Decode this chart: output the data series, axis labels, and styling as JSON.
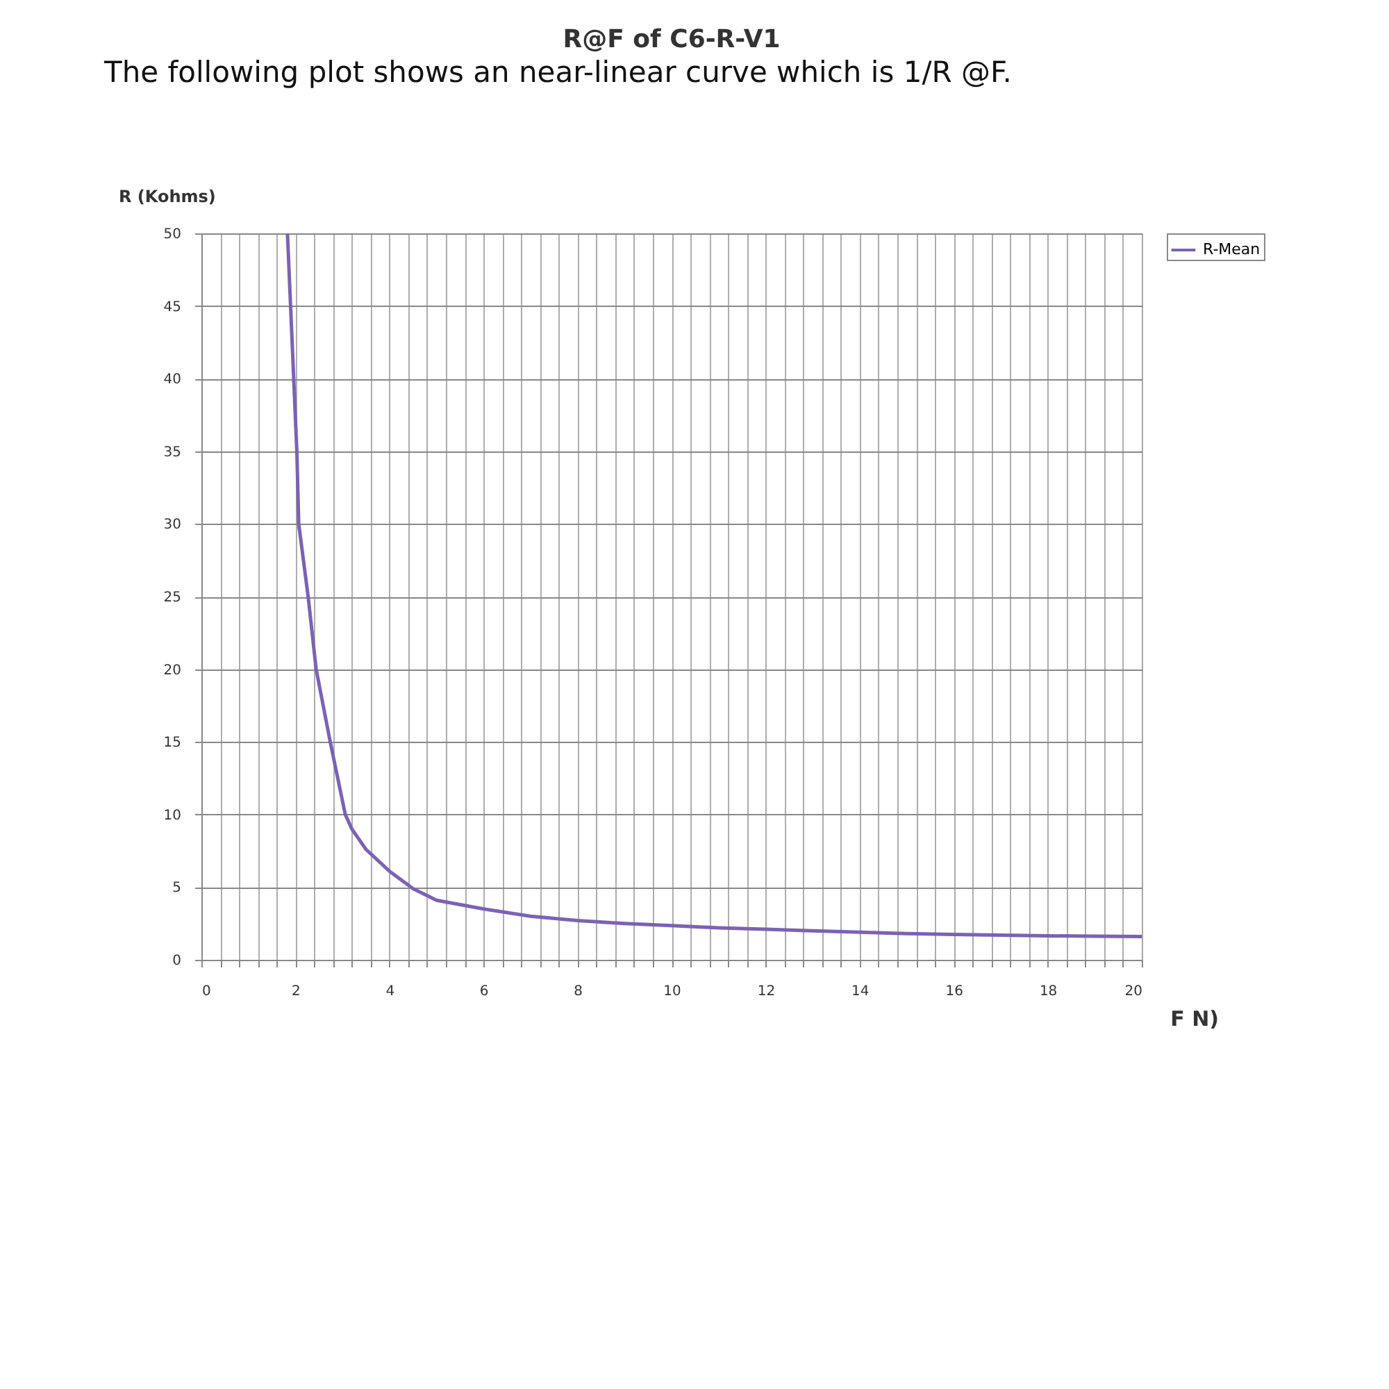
{
  "chart_data": {
    "type": "line",
    "title": "R@F of C6-R-V1",
    "xlabel": "F N)",
    "ylabel": "R (Kohms)",
    "annotations": [
      "The following plot shows an near-linear curve which is 1/R @F."
    ],
    "series": [
      {
        "name": "R-Mean",
        "color": "#7b62b3",
        "x": [
          1.83,
          2.03,
          2.07,
          2.27,
          2.44,
          2.74,
          3.06,
          3.2,
          3.5,
          4,
          4.5,
          5,
          6,
          7,
          8,
          9,
          10,
          11,
          12,
          13,
          14,
          15,
          16,
          17,
          18,
          19,
          20
        ],
        "values": [
          50,
          35,
          30,
          25,
          20,
          15,
          10,
          9,
          7.6,
          6.1,
          4.9,
          4.1,
          3.5,
          3.0,
          2.7,
          2.5,
          2.35,
          2.2,
          2.1,
          2.0,
          1.9,
          1.8,
          1.75,
          1.7,
          1.65,
          1.62,
          1.6
        ]
      }
    ],
    "xlim": [
      0,
      20
    ],
    "ylim": [
      0,
      50
    ],
    "xticks": [
      0,
      {
        "value": 0.4,
        "label": null
      },
      {
        "value": 0.8,
        "label": null
      },
      {
        "value": 1.2,
        "label": null
      },
      {
        "value": 1.6,
        "label": null
      },
      2,
      {
        "value": 2.4,
        "label": null
      },
      {
        "value": 2.8,
        "label": null
      },
      {
        "value": 3.2,
        "label": null
      },
      {
        "value": 3.6,
        "label": null
      },
      4,
      {
        "value": 4.4,
        "label": null
      },
      {
        "value": 4.8,
        "label": null
      },
      {
        "value": 5.2,
        "label": null
      },
      {
        "value": 5.6,
        "label": null
      },
      6,
      {
        "value": 6.4,
        "label": null
      },
      {
        "value": 6.8,
        "label": null
      },
      {
        "value": 7.2,
        "label": null
      },
      {
        "value": 7.6,
        "label": null
      },
      8,
      {
        "value": 8.4,
        "label": null
      },
      {
        "value": 8.8,
        "label": null
      },
      {
        "value": 9.2,
        "label": null
      },
      {
        "value": 9.6,
        "label": null
      },
      10,
      {
        "value": 10.4,
        "label": null
      },
      {
        "value": 10.8,
        "label": null
      },
      {
        "value": 11.2,
        "label": null
      },
      {
        "value": 11.6,
        "label": null
      },
      12,
      {
        "value": 12.4,
        "label": null
      },
      {
        "value": 12.8,
        "label": null
      },
      {
        "value": 13.2,
        "label": null
      },
      {
        "value": 13.6,
        "label": null
      },
      14,
      {
        "value": 14.4,
        "label": null
      },
      {
        "value": 14.8,
        "label": null
      },
      {
        "value": 15.2,
        "label": null
      },
      {
        "value": 15.6,
        "label": null
      },
      16,
      {
        "value": 16.4,
        "label": null
      },
      {
        "value": 16.8,
        "label": null
      },
      {
        "value": 17.2,
        "label": null
      },
      {
        "value": 17.6,
        "label": null
      },
      18,
      {
        "value": 18.4,
        "label": null
      },
      {
        "value": 18.8,
        "label": null
      },
      {
        "value": 19.2,
        "label": null
      },
      {
        "value": 19.6,
        "label": null
      },
      20
    ],
    "yticks": [
      0,
      5,
      10,
      15,
      20,
      25,
      30,
      35,
      40,
      45,
      50
    ],
    "grid": true,
    "legend": "right",
    "line_style": "solid"
  }
}
